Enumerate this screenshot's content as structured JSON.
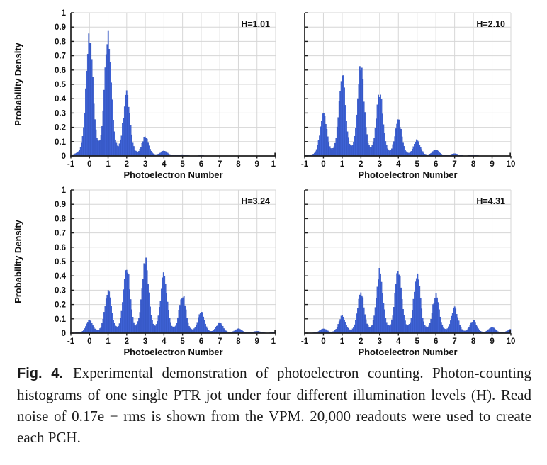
{
  "figure": {
    "caption_label": "Fig. 4.",
    "caption_body": "Experimental demonstration of photoelectron counting. Photon-counting histograms of one single PTR jot under four different illumination levels (H). Read noise of 0.17e − rms is shown from the VPM. 20,000 readouts were used to create each PCH."
  },
  "chart_data": {
    "type": "bar",
    "subtype": "photon-counting-histogram-grid-2x2",
    "xlabel": "Photoelectron Number",
    "ylabel": "Probability Density",
    "xlim": [
      -1,
      10
    ],
    "ylim": [
      0,
      1
    ],
    "xtick_labels": [
      "-1",
      "0",
      "1",
      "2",
      "3",
      "4",
      "5",
      "6",
      "7",
      "8",
      "9",
      "10"
    ],
    "xticks": [
      -1,
      0,
      1,
      2,
      3,
      4,
      5,
      6,
      7,
      8,
      9,
      10
    ],
    "ytick_labels": [
      "0",
      "0.1",
      "0.2",
      "0.3",
      "0.4",
      "0.5",
      "0.6",
      "0.7",
      "0.8",
      "0.9",
      "1"
    ],
    "yticks": [
      0,
      0.1,
      0.2,
      0.3,
      0.4,
      0.5,
      0.6,
      0.7,
      0.8,
      0.9,
      1
    ],
    "grid": true,
    "legend": "none",
    "read_noise_sigma_e": 0.17,
    "readouts_per_histogram": 20000,
    "subplots": [
      {
        "annotation": "H=1.01",
        "H": 1.01,
        "peak_centers": [
          0,
          1,
          2,
          3,
          4,
          5,
          6,
          7,
          8,
          9,
          10
        ],
        "peak_heights": [
          0.855,
          0.845,
          0.42,
          0.128,
          0.035,
          0.008,
          0.002,
          0,
          0,
          0,
          0
        ]
      },
      {
        "annotation": "H=2.10",
        "H": 2.1,
        "peak_centers": [
          0,
          1,
          2,
          3,
          4,
          5,
          6,
          7,
          8,
          9,
          10
        ],
        "peak_heights": [
          0.28,
          0.555,
          0.605,
          0.425,
          0.235,
          0.105,
          0.04,
          0.015,
          0.004,
          0,
          0
        ]
      },
      {
        "annotation": "H=3.24",
        "H": 3.24,
        "peak_centers": [
          0,
          1,
          2,
          3,
          4,
          5,
          6,
          7,
          8,
          9,
          10
        ],
        "peak_heights": [
          0.085,
          0.285,
          0.455,
          0.5,
          0.405,
          0.26,
          0.145,
          0.07,
          0.03,
          0.012,
          0.004
        ]
      },
      {
        "annotation": "H=4.31",
        "H": 4.31,
        "peak_centers": [
          0,
          1,
          2,
          3,
          4,
          5,
          6,
          7,
          8,
          9,
          10
        ],
        "peak_heights": [
          0.028,
          0.12,
          0.275,
          0.42,
          0.44,
          0.4,
          0.26,
          0.17,
          0.085,
          0.038,
          0.025
        ]
      }
    ]
  },
  "colors": {
    "bar_fill": "#3F63D6",
    "bar_edge": "#2B4BB5",
    "grid": "#D6D6D6",
    "spine": "#1F1F1F",
    "text": "#111111",
    "background": "#FFFFFF"
  }
}
